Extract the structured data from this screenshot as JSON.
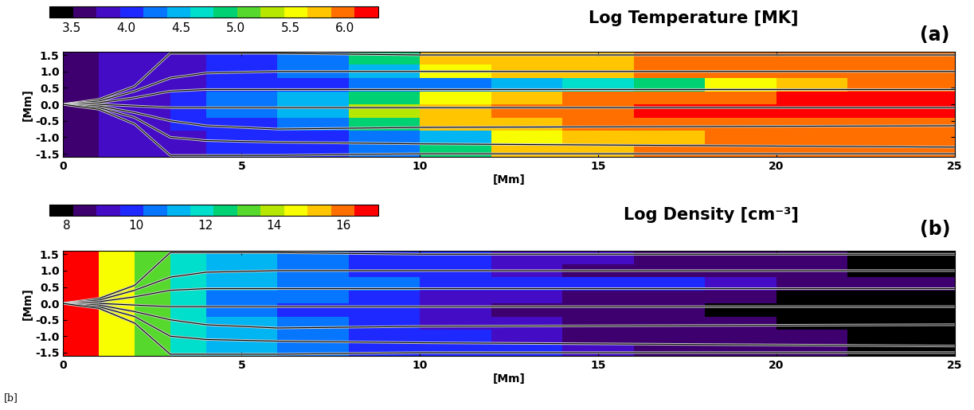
{
  "chart_data": [
    {
      "type": "heatmap",
      "title": "Log Temperature [MK]",
      "panel_label": "(a)",
      "x_label": "[Mm]",
      "y_label": "[Mm]",
      "xlim": [
        0,
        25
      ],
      "ylim": [
        -1.6,
        1.6
      ],
      "xticks": [
        0,
        5,
        10,
        15,
        20,
        25
      ],
      "yticks": [
        -1.5,
        -1.0,
        -0.5,
        0.0,
        0.5,
        1.0,
        1.5
      ],
      "x_edges": [
        0,
        1,
        2,
        3,
        4,
        6,
        8,
        10,
        12,
        14,
        16,
        18,
        20,
        22,
        25
      ],
      "y_edges": [
        -1.6,
        -1.2,
        -0.8,
        -0.4,
        0,
        0.4,
        0.8,
        1.2,
        1.6
      ],
      "cells": [
        [
          3.7,
          3.8,
          3.8,
          3.9,
          4.0,
          4.1,
          4.3,
          5.0,
          5.7,
          5.8,
          5.9,
          5.9,
          5.9,
          5.9
        ],
        [
          3.7,
          3.8,
          3.8,
          3.9,
          4.0,
          4.1,
          4.2,
          4.4,
          5.5,
          5.8,
          5.8,
          5.9,
          5.9,
          5.9
        ],
        [
          3.7,
          3.8,
          3.9,
          4.0,
          4.1,
          4.3,
          5.0,
          5.7,
          5.8,
          5.9,
          5.9,
          5.9,
          6.0,
          6.0
        ],
        [
          3.7,
          3.8,
          3.9,
          4.0,
          4.2,
          4.5,
          5.3,
          5.8,
          5.9,
          6.0,
          6.1,
          6.1,
          6.2,
          6.2
        ],
        [
          3.7,
          3.8,
          3.9,
          4.0,
          4.2,
          4.4,
          5.0,
          5.6,
          5.8,
          5.9,
          6.0,
          6.0,
          6.1,
          6.1
        ],
        [
          3.7,
          3.8,
          3.8,
          3.9,
          4.0,
          4.1,
          4.2,
          4.3,
          4.4,
          4.6,
          4.9,
          5.6,
          5.8,
          5.9
        ],
        [
          3.7,
          3.8,
          3.8,
          3.9,
          4.0,
          4.2,
          4.5,
          5.5,
          5.8,
          5.8,
          5.9,
          5.9,
          5.9,
          5.9
        ],
        [
          3.7,
          3.8,
          3.8,
          3.9,
          4.0,
          4.3,
          4.8,
          5.7,
          5.8,
          5.8,
          5.9,
          5.9,
          5.9,
          5.9
        ]
      ],
      "colorbar": {
        "range": [
          3.3,
          6.3
        ],
        "ticks": [
          3.5,
          4.0,
          4.5,
          5.0,
          5.5,
          6.0
        ]
      },
      "field_lines": [
        {
          "x": [
            0,
            1,
            2,
            3,
            4,
            6,
            10,
            25
          ],
          "y": [
            0,
            0.15,
            0.55,
            1.55,
            1.55,
            1.55,
            1.5,
            1.5
          ]
        },
        {
          "x": [
            0,
            1,
            2,
            3,
            4,
            6,
            10,
            25
          ],
          "y": [
            0,
            0.1,
            0.4,
            0.8,
            0.95,
            1.0,
            1.0,
            1.0
          ]
        },
        {
          "x": [
            0,
            1,
            2,
            3,
            4,
            6,
            10,
            25
          ],
          "y": [
            0,
            0.05,
            0.2,
            0.4,
            0.45,
            0.45,
            0.45,
            0.45
          ]
        },
        {
          "x": [
            0,
            1,
            2,
            3,
            4,
            6,
            10,
            25
          ],
          "y": [
            0,
            0.0,
            -0.05,
            -0.1,
            -0.1,
            -0.1,
            -0.1,
            -0.1
          ]
        },
        {
          "x": [
            0,
            1,
            2,
            3,
            4,
            6,
            10,
            25
          ],
          "y": [
            0,
            -0.05,
            -0.25,
            -0.5,
            -0.65,
            -0.75,
            -0.7,
            -0.65
          ]
        },
        {
          "x": [
            0,
            1,
            2,
            3,
            4,
            6,
            10,
            25
          ],
          "y": [
            0,
            -0.1,
            -0.4,
            -1.0,
            -1.1,
            -1.15,
            -1.2,
            -1.3
          ]
        },
        {
          "x": [
            0,
            1,
            2,
            3,
            4,
            6,
            10,
            25
          ],
          "y": [
            0,
            -0.15,
            -0.6,
            -1.55,
            -1.55,
            -1.55,
            -1.5,
            -1.5
          ]
        }
      ]
    },
    {
      "type": "heatmap",
      "title": "Log Density [cm⁻³]",
      "panel_label": "(b)",
      "x_label": "[Mm]",
      "y_label": "[Mm]",
      "xlim": [
        0,
        25
      ],
      "ylim": [
        -1.6,
        1.6
      ],
      "xticks": [
        0,
        5,
        10,
        15,
        20,
        25
      ],
      "yticks": [
        -1.5,
        -1.0,
        -0.5,
        0.0,
        0.5,
        1.0,
        1.5
      ],
      "x_edges": [
        0,
        1,
        2,
        3,
        4,
        6,
        8,
        10,
        12,
        14,
        16,
        18,
        20,
        22,
        25
      ],
      "y_edges": [
        -1.6,
        -1.2,
        -0.8,
        -0.4,
        0,
        0.4,
        0.8,
        1.2,
        1.6
      ],
      "cells": [
        [
          16.5,
          14.5,
          13.2,
          11.8,
          11.0,
          10.5,
          10.0,
          9.8,
          9.6,
          9.2,
          8.5,
          8.3,
          8.2,
          8.1
        ],
        [
          16.5,
          14.5,
          13.2,
          11.8,
          11.0,
          10.5,
          10.0,
          9.6,
          9.2,
          8.8,
          8.4,
          8.3,
          8.2,
          8.1
        ],
        [
          16.5,
          14.5,
          13.2,
          11.8,
          11.0,
          10.5,
          10.0,
          9.4,
          9.0,
          8.6,
          8.3,
          8.2,
          8.1,
          8.0
        ],
        [
          16.5,
          14.5,
          13.2,
          11.6,
          10.8,
          10.2,
          9.6,
          9.0,
          8.6,
          8.3,
          8.2,
          8.1,
          8.0,
          8.0
        ],
        [
          16.5,
          14.5,
          13.2,
          11.6,
          10.8,
          10.3,
          9.8,
          9.4,
          9.0,
          8.6,
          8.3,
          8.2,
          8.1,
          8.0
        ],
        [
          16.5,
          14.5,
          13.2,
          11.8,
          11.0,
          10.6,
          10.3,
          10.2,
          10.0,
          9.8,
          9.6,
          9.2,
          8.6,
          8.2
        ],
        [
          16.5,
          14.5,
          13.2,
          11.8,
          11.0,
          10.5,
          10.0,
          9.6,
          9.2,
          8.8,
          8.4,
          8.3,
          8.2,
          8.1
        ],
        [
          16.5,
          14.5,
          13.2,
          11.8,
          11.0,
          10.5,
          10.0,
          9.8,
          9.4,
          9.0,
          8.5,
          8.3,
          8.2,
          8.1
        ]
      ],
      "colorbar": {
        "range": [
          7.5,
          17
        ],
        "ticks": [
          8,
          10,
          12,
          14,
          16
        ]
      },
      "field_lines": [
        {
          "x": [
            0,
            1,
            2,
            3,
            4,
            6,
            10,
            25
          ],
          "y": [
            0,
            0.15,
            0.55,
            1.55,
            1.55,
            1.55,
            1.5,
            1.5
          ]
        },
        {
          "x": [
            0,
            1,
            2,
            3,
            4,
            6,
            10,
            25
          ],
          "y": [
            0,
            0.1,
            0.4,
            0.8,
            0.95,
            1.0,
            1.0,
            1.0
          ]
        },
        {
          "x": [
            0,
            1,
            2,
            3,
            4,
            6,
            10,
            25
          ],
          "y": [
            0,
            0.05,
            0.2,
            0.4,
            0.45,
            0.45,
            0.45,
            0.45
          ]
        },
        {
          "x": [
            0,
            1,
            2,
            3,
            4,
            6,
            10,
            25
          ],
          "y": [
            0,
            0.0,
            -0.05,
            -0.1,
            -0.1,
            -0.1,
            -0.1,
            -0.1
          ]
        },
        {
          "x": [
            0,
            1,
            2,
            3,
            4,
            6,
            10,
            25
          ],
          "y": [
            0,
            -0.05,
            -0.25,
            -0.5,
            -0.65,
            -0.75,
            -0.7,
            -0.65
          ]
        },
        {
          "x": [
            0,
            1,
            2,
            3,
            4,
            6,
            10,
            25
          ],
          "y": [
            0,
            -0.1,
            -0.4,
            -1.0,
            -1.1,
            -1.15,
            -1.2,
            -1.3
          ]
        },
        {
          "x": [
            0,
            1,
            2,
            3,
            4,
            6,
            10,
            25
          ],
          "y": [
            0,
            -0.15,
            -0.6,
            -1.55,
            -1.55,
            -1.55,
            -1.5,
            -1.5
          ]
        }
      ]
    }
  ],
  "footnote": "[b]"
}
